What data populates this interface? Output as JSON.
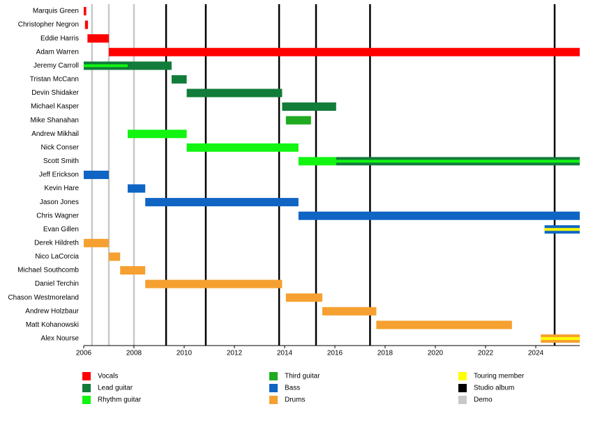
{
  "chart_data": {
    "type": "timeline",
    "xlim": [
      2006,
      2025.75
    ],
    "xticks": [
      2006,
      2008,
      2010,
      2012,
      2014,
      2016,
      2018,
      2020,
      2022,
      2024
    ],
    "legend": [
      {
        "name": "Vocals",
        "color": "#ff0000"
      },
      {
        "name": "Lead guitar",
        "color": "#127c3a"
      },
      {
        "name": "Rhythm guitar",
        "color": "#11f511"
      },
      {
        "name": "Third guitar",
        "color": "#1faa1f"
      },
      {
        "name": "Bass",
        "color": "#0f64c4"
      },
      {
        "name": "Drums",
        "color": "#f5a030"
      },
      {
        "name": "Touring member",
        "color": "#ffff00"
      },
      {
        "name": "Studio album",
        "color": "#000000"
      },
      {
        "name": "Demo",
        "color": "#c8c8c8"
      }
    ],
    "albums": [
      2009.28,
      2010.86,
      2013.78,
      2015.25,
      2017.4,
      2024.75
    ],
    "demos": [
      2006.33,
      2007.0,
      2008.0
    ],
    "members": [
      {
        "name": "Marquis Green",
        "periods": [
          {
            "role": "Vocals",
            "start": 2006,
            "end": 2006.1
          }
        ]
      },
      {
        "name": "Christopher Negron",
        "periods": [
          {
            "role": "Vocals",
            "start": 2006.05,
            "end": 2006.17
          }
        ]
      },
      {
        "name": "Eddie Harris",
        "periods": [
          {
            "role": "Vocals",
            "start": 2006.15,
            "end": 2007.0
          }
        ]
      },
      {
        "name": "Adam Warren",
        "periods": [
          {
            "role": "Vocals",
            "start": 2007.0,
            "end": 2025.75
          }
        ]
      },
      {
        "name": "Jeremy Carroll",
        "periods": [
          {
            "role": "Lead guitar",
            "start": 2006,
            "end": 2009.5
          },
          {
            "role": "Rhythm guitar",
            "start": 2006,
            "end": 2007.75,
            "stripe": true
          }
        ]
      },
      {
        "name": "Tristan McCann",
        "periods": [
          {
            "role": "Lead guitar",
            "start": 2009.5,
            "end": 2010.1
          }
        ]
      },
      {
        "name": "Devin Shidaker",
        "periods": [
          {
            "role": "Lead guitar",
            "start": 2010.1,
            "end": 2013.9
          }
        ]
      },
      {
        "name": "Michael Kasper",
        "periods": [
          {
            "role": "Lead guitar",
            "start": 2013.9,
            "end": 2016.05
          }
        ]
      },
      {
        "name": "Mike Shanahan",
        "periods": [
          {
            "role": "Third guitar",
            "start": 2014.05,
            "end": 2015.05
          }
        ]
      },
      {
        "name": "Andrew Mikhail",
        "periods": [
          {
            "role": "Rhythm guitar",
            "start": 2007.75,
            "end": 2010.1
          }
        ]
      },
      {
        "name": "Nick Conser",
        "periods": [
          {
            "role": "Rhythm guitar",
            "start": 2010.1,
            "end": 2014.55
          }
        ]
      },
      {
        "name": "Scott Smith",
        "periods": [
          {
            "role": "Rhythm guitar",
            "start": 2014.55,
            "end": 2016.05
          },
          {
            "role": "Lead guitar",
            "start": 2016.05,
            "end": 2025.75
          },
          {
            "role": "Rhythm guitar",
            "start": 2016.05,
            "end": 2025.75,
            "stripe": true
          }
        ]
      },
      {
        "name": "Jeff Erickson",
        "periods": [
          {
            "role": "Bass",
            "start": 2006,
            "end": 2007.0
          }
        ]
      },
      {
        "name": "Kevin Hare",
        "periods": [
          {
            "role": "Bass",
            "start": 2007.75,
            "end": 2008.45
          }
        ]
      },
      {
        "name": "Jason Jones",
        "periods": [
          {
            "role": "Bass",
            "start": 2008.45,
            "end": 2014.55
          }
        ]
      },
      {
        "name": "Chris Wagner",
        "periods": [
          {
            "role": "Bass",
            "start": 2014.55,
            "end": 2025.75
          }
        ]
      },
      {
        "name": "Evan Gillen",
        "periods": [
          {
            "role": "Bass",
            "start": 2024.35,
            "end": 2025.75
          },
          {
            "role": "Touring member",
            "start": 2024.35,
            "end": 2025.75,
            "stripe": true
          }
        ]
      },
      {
        "name": "Derek Hildreth",
        "periods": [
          {
            "role": "Drums",
            "start": 2006,
            "end": 2007.0
          }
        ]
      },
      {
        "name": "Nico LaCorcia",
        "periods": [
          {
            "role": "Drums",
            "start": 2007.0,
            "end": 2007.45
          }
        ]
      },
      {
        "name": "Michael Southcomb",
        "periods": [
          {
            "role": "Drums",
            "start": 2007.45,
            "end": 2008.45
          }
        ]
      },
      {
        "name": "Daniel Terchin",
        "periods": [
          {
            "role": "Drums",
            "start": 2008.45,
            "end": 2013.9
          }
        ]
      },
      {
        "name": "Chason Westmoreland",
        "periods": [
          {
            "role": "Drums",
            "start": 2014.05,
            "end": 2015.5
          }
        ]
      },
      {
        "name": "Andrew Holzbaur",
        "periods": [
          {
            "role": "Drums",
            "start": 2015.5,
            "end": 2017.65
          }
        ]
      },
      {
        "name": "Matt Kohanowski",
        "periods": [
          {
            "role": "Drums",
            "start": 2017.65,
            "end": 2023.05
          }
        ]
      },
      {
        "name": "Alex Nourse",
        "periods": [
          {
            "role": "Drums",
            "start": 2024.2,
            "end": 2025.75
          },
          {
            "role": "Touring member",
            "start": 2024.2,
            "end": 2025.75,
            "stripe": true
          }
        ]
      }
    ]
  }
}
